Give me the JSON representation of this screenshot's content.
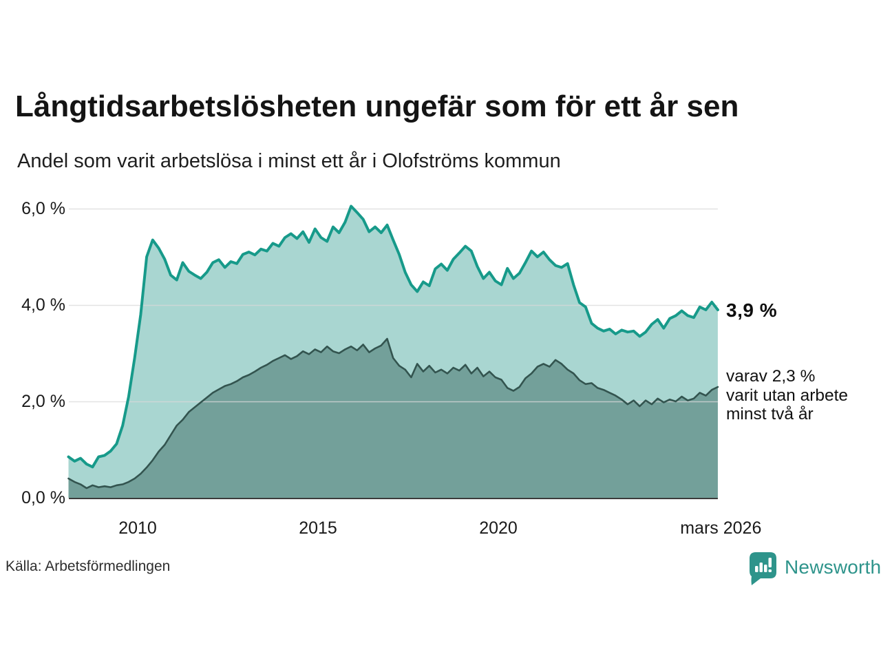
{
  "header": {
    "title": "Långtidsarbetslösheten ungefär som för ett år sen",
    "subtitle": "Andel som varit arbetslösa i minst ett år i Olofströms kommun"
  },
  "chart_data": {
    "type": "area",
    "title": "Långtidsarbetslösheten ungefär som för ett år sen",
    "subtitle": "Andel som varit arbetslösa i minst ett år i Olofströms kommun",
    "unit": "%",
    "x_start": 2008.083,
    "x_step": 0.1667,
    "x_end_label": "mars 2026",
    "ylim": [
      0,
      6.5
    ],
    "grid": "horizontal",
    "series": [
      {
        "name": "Andel som varit arbetslösa minst ett år",
        "line_color": "#179a8a",
        "fill_color": "#a9d6d1",
        "end_value_label": "3,9 %",
        "values": [
          0.85,
          0.76,
          0.82,
          0.7,
          0.64,
          0.85,
          0.88,
          0.97,
          1.12,
          1.5,
          2.1,
          2.9,
          3.8,
          5.0,
          5.35,
          5.18,
          4.95,
          4.62,
          4.52,
          4.88,
          4.7,
          4.62,
          4.55,
          4.68,
          4.88,
          4.94,
          4.78,
          4.9,
          4.86,
          5.05,
          5.1,
          5.04,
          5.16,
          5.12,
          5.28,
          5.22,
          5.4,
          5.48,
          5.38,
          5.52,
          5.3,
          5.58,
          5.4,
          5.32,
          5.62,
          5.5,
          5.72,
          6.05,
          5.92,
          5.78,
          5.52,
          5.62,
          5.5,
          5.66,
          5.35,
          5.05,
          4.68,
          4.42,
          4.28,
          4.48,
          4.4,
          4.75,
          4.85,
          4.72,
          4.95,
          5.08,
          5.22,
          5.12,
          4.8,
          4.55,
          4.68,
          4.5,
          4.42,
          4.76,
          4.55,
          4.66,
          4.88,
          5.12,
          5.0,
          5.1,
          4.94,
          4.82,
          4.78,
          4.86,
          4.42,
          4.05,
          3.96,
          3.62,
          3.52,
          3.46,
          3.5,
          3.4,
          3.48,
          3.44,
          3.46,
          3.35,
          3.44,
          3.6,
          3.7,
          3.52,
          3.72,
          3.78,
          3.88,
          3.78,
          3.74,
          3.96,
          3.9,
          4.06,
          3.9
        ]
      },
      {
        "name": "Andel som varit utan arbete minst två år",
        "line_color": "#33544f",
        "fill_color": "#73a09a",
        "end_value_label": "2,3 %",
        "values": [
          0.4,
          0.33,
          0.28,
          0.2,
          0.26,
          0.22,
          0.24,
          0.22,
          0.26,
          0.28,
          0.33,
          0.4,
          0.5,
          0.63,
          0.78,
          0.96,
          1.1,
          1.3,
          1.5,
          1.62,
          1.78,
          1.88,
          1.98,
          2.08,
          2.18,
          2.25,
          2.32,
          2.36,
          2.42,
          2.5,
          2.55,
          2.62,
          2.7,
          2.76,
          2.84,
          2.9,
          2.96,
          2.88,
          2.94,
          3.04,
          2.98,
          3.08,
          3.02,
          3.14,
          3.04,
          3.0,
          3.08,
          3.14,
          3.06,
          3.18,
          3.02,
          3.1,
          3.16,
          3.3,
          2.9,
          2.74,
          2.66,
          2.5,
          2.78,
          2.62,
          2.74,
          2.6,
          2.66,
          2.58,
          2.7,
          2.64,
          2.76,
          2.58,
          2.7,
          2.52,
          2.62,
          2.5,
          2.45,
          2.28,
          2.22,
          2.3,
          2.48,
          2.58,
          2.72,
          2.78,
          2.72,
          2.86,
          2.78,
          2.66,
          2.58,
          2.44,
          2.36,
          2.38,
          2.28,
          2.24,
          2.18,
          2.12,
          2.04,
          1.94,
          2.02,
          1.9,
          2.02,
          1.94,
          2.06,
          1.98,
          2.04,
          2.0,
          2.1,
          2.02,
          2.06,
          2.18,
          2.12,
          2.24,
          2.3
        ]
      }
    ],
    "yticks": [
      {
        "value": 0,
        "label": "0,0 %"
      },
      {
        "value": 2,
        "label": "2,0 %"
      },
      {
        "value": 4,
        "label": "4,0 %"
      },
      {
        "value": 6,
        "label": "6,0 %"
      }
    ],
    "xticks": [
      {
        "x": 2010,
        "label": "2010"
      },
      {
        "x": 2015,
        "label": "2015"
      },
      {
        "x": 2020,
        "label": "2020"
      },
      {
        "x": 2026.17,
        "label": "mars 2026"
      }
    ],
    "end_label": "3,9 %",
    "annotation": [
      "varav 2,3 %",
      "varit utan arbete",
      "minst två år"
    ],
    "gridline_color": "#d8d8d8",
    "axis_color": "#3c3c3c"
  },
  "footer": {
    "source": "Källa: Arbetsförmedlingen",
    "brand": "Newsworthy",
    "brand_color": "#2e948b"
  }
}
